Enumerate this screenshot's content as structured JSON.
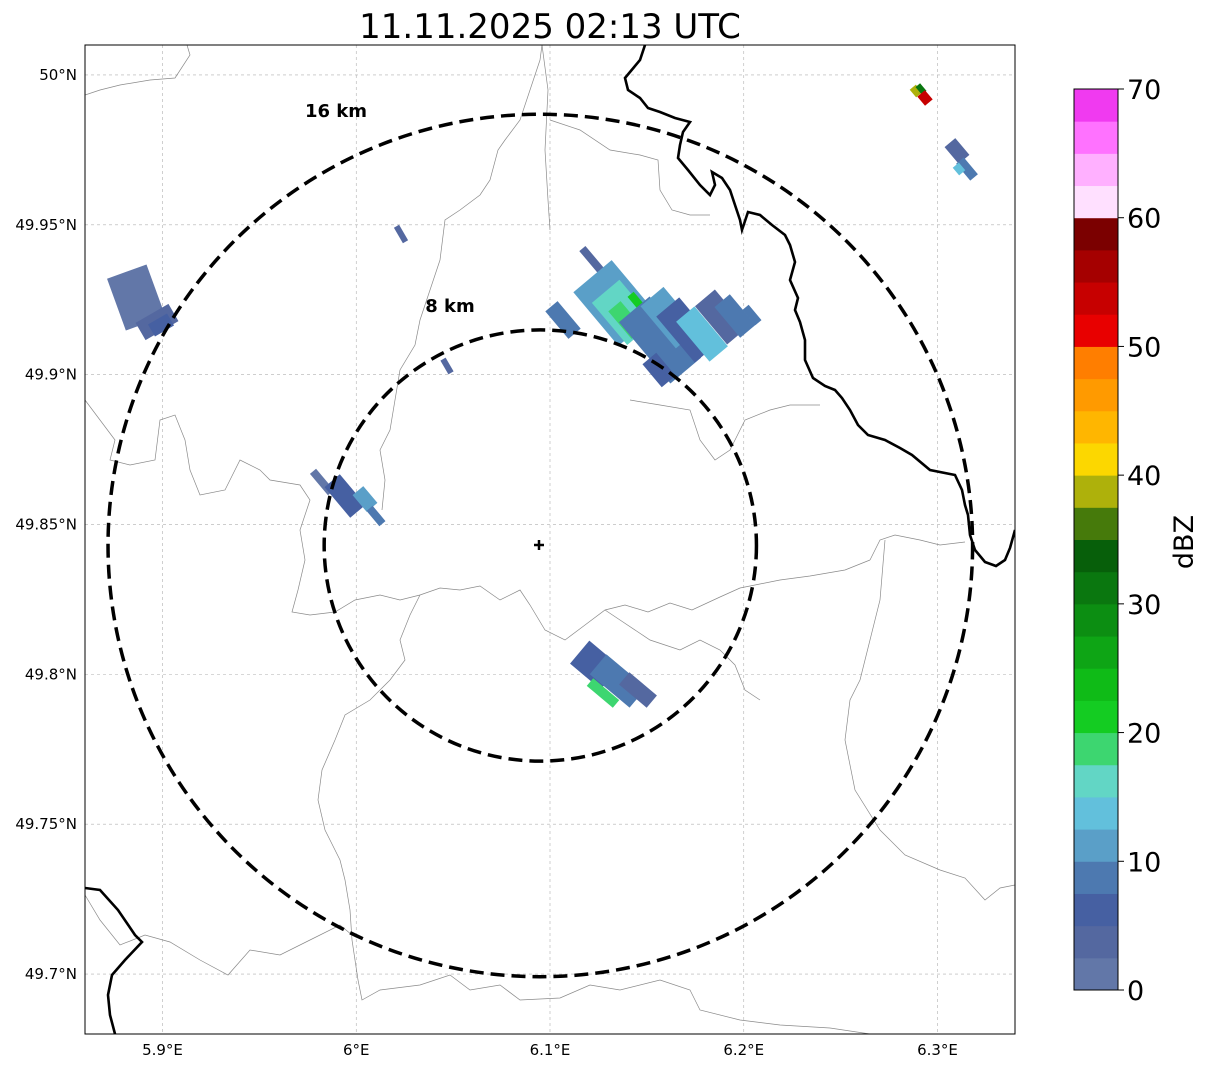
{
  "title": "11.11.2025 02:13 UTC",
  "map": {
    "lon_range": [
      5.86,
      6.34
    ],
    "lat_range": [
      49.68,
      50.01
    ],
    "lon_ticks": [
      {
        "value": 5.9,
        "label": "5.9°E"
      },
      {
        "value": 6.0,
        "label": "6°E"
      },
      {
        "value": 6.1,
        "label": "6.1°E"
      },
      {
        "value": 6.2,
        "label": "6.2°E"
      },
      {
        "value": 6.3,
        "label": "6.3°E"
      }
    ],
    "lat_ticks": [
      {
        "value": 50.0,
        "label": "50°N"
      },
      {
        "value": 49.95,
        "label": "49.95°N"
      },
      {
        "value": 49.9,
        "label": "49.9°N"
      },
      {
        "value": 49.85,
        "label": "49.85°N"
      },
      {
        "value": 49.8,
        "label": "49.8°N"
      },
      {
        "value": 49.75,
        "label": "49.75°N"
      },
      {
        "value": 49.7,
        "label": "49.7°N"
      }
    ],
    "radar_center": {
      "lon": 6.095,
      "lat": 49.843
    },
    "rings": [
      {
        "label": "8 km",
        "radius_km": 8
      },
      {
        "label": "16 km",
        "radius_km": 16
      }
    ],
    "colors": {
      "ring": "#000000",
      "grid": "#b0b0b0",
      "border_thick": "#000000",
      "border_thin": "#808080"
    }
  },
  "colorbar": {
    "label": "dBZ",
    "min": 0,
    "max": 70,
    "tick_values": [
      0,
      10,
      20,
      30,
      40,
      50,
      60,
      70
    ],
    "tick_labels": [
      "0",
      "10",
      "20",
      "30",
      "40",
      "50",
      "60",
      "70"
    ],
    "colors": [
      "#6277a8",
      "#5468a0",
      "#4660a2",
      "#4d79b0",
      "#5a9fc8",
      "#62c0dc",
      "#62d6c5",
      "#3dd670",
      "#14cc22",
      "#0fbb17",
      "#0ea515",
      "#0c8e12",
      "#0a770f",
      "#075f0a",
      "#467a0b",
      "#aeb10b",
      "#fcd700",
      "#ffb600",
      "#ff9a00",
      "#ff7e00",
      "#e80000",
      "#c70000",
      "#a50000",
      "#7b0000",
      "#ffe0ff",
      "#ffb0ff",
      "#ff72ff",
      "#f03af0"
    ]
  }
}
